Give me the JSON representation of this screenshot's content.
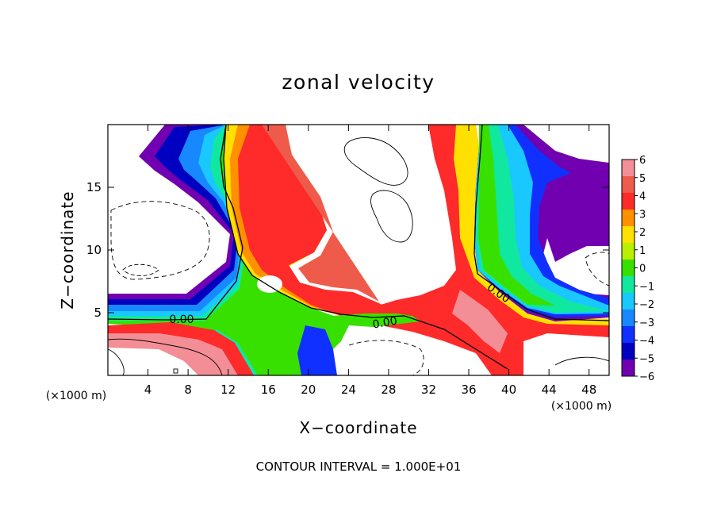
{
  "chart_data": {
    "type": "heatmap",
    "title": "zonal velocity",
    "xlabel": "X−coordinate",
    "ylabel": "Z−coordinate",
    "x_unit": "(×1000 m)",
    "y_unit": "(×1000 m)",
    "xlim": [
      0,
      50
    ],
    "ylim": [
      0,
      20
    ],
    "x_ticks": [
      4,
      8,
      12,
      16,
      20,
      24,
      28,
      32,
      36,
      40,
      44,
      48
    ],
    "y_ticks": [
      5,
      10,
      15
    ],
    "colorbar": {
      "min": -6,
      "max": 6,
      "labels": [
        "6",
        "5",
        "4",
        "3",
        "2",
        "1",
        "0",
        "−1",
        "−2",
        "−3",
        "−4",
        "−5",
        "−6"
      ]
    },
    "contour_labels": [
      "0.00",
      "0.00",
      "0.00"
    ],
    "footer": "CONTOUR INTERVAL = 1.000E+01",
    "colors": {
      "pos6": "#f48e96",
      "pos5": "#ef5b4a",
      "pos4": "#ff2a2a",
      "pos3": "#ff9000",
      "pos2": "#ffe000",
      "pos1": "#b8f000",
      "zero": "#38e000",
      "neg1": "#10e8a0",
      "neg2": "#18c8ff",
      "neg3": "#1888ff",
      "neg4": "#1030ff",
      "neg5": "#0000c0",
      "neg6": "#7000b0"
    }
  }
}
